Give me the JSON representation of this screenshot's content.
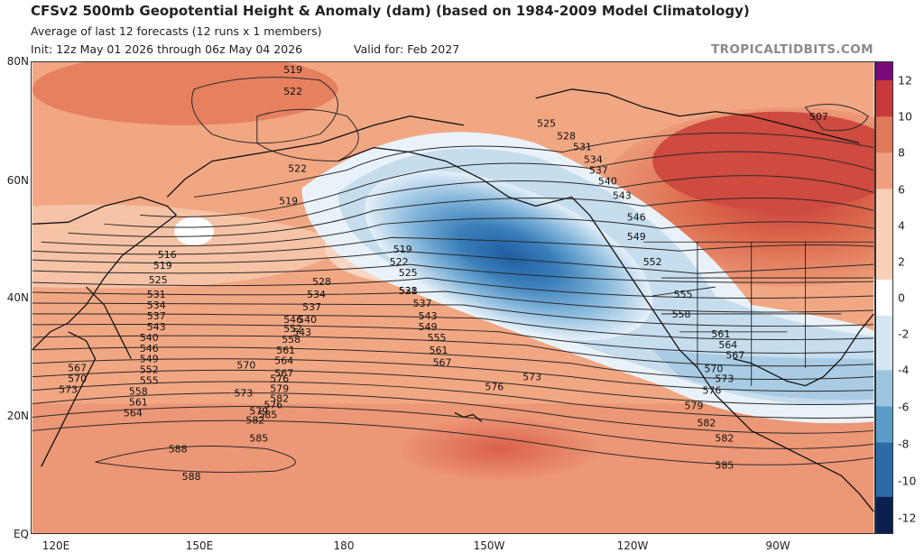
{
  "header": {
    "title": "CFSv2 500mb Geopotential Height & Anomaly (dam) (based on 1984-2009 Model Climatology)",
    "subtitle": "Average of last 12 forecasts (12 runs x 1 members)",
    "init": "Init: 12z May 01 2026 through 06z May 04 2026",
    "valid": "Valid for: Feb 2027",
    "brand": "TROPICALTIDBITS.COM"
  },
  "axes": {
    "lat_labels": [
      "80N",
      "60N",
      "40N",
      "20N",
      "EQ"
    ],
    "lon_labels": [
      "120E",
      "150E",
      "180",
      "150W",
      "120W",
      "90W"
    ]
  },
  "colorbar": {
    "labels": [
      "12",
      "10",
      "8",
      "6",
      "4",
      "2",
      "0",
      "-2",
      "-4",
      "-6",
      "-8",
      "-10",
      "-12"
    ],
    "colors": {
      "pos_high": "#7a0a7a",
      "pos_strong": "#c8393b",
      "pos_mid": "#e07a5a",
      "pos_low": "#f0a080",
      "pos_weak": "#f8d0b8",
      "zero": "#ffffff",
      "neg_weak": "#d4e6f2",
      "neg_low": "#9cc6e0",
      "neg_mid": "#5a9bc8",
      "neg_strong": "#2c6aa8",
      "neg_high": "#0c2050"
    }
  },
  "contour_labels": [
    "519",
    "522",
    "522",
    "519",
    "516",
    "519",
    "525",
    "531",
    "534",
    "537",
    "543",
    "540",
    "546",
    "549",
    "552",
    "555",
    "558",
    "561",
    "564",
    "567",
    "570",
    "573",
    "576",
    "579",
    "582",
    "585",
    "588",
    "588",
    "528",
    "534",
    "537",
    "540",
    "543",
    "546",
    "552",
    "558",
    "561",
    "564",
    "567",
    "570",
    "573",
    "576",
    "579",
    "582",
    "585",
    "507",
    "519",
    "522",
    "525",
    "528",
    "531",
    "537",
    "543",
    "549",
    "555",
    "561",
    "567",
    "573",
    "576",
    "582",
    "585",
    "525",
    "528",
    "531",
    "534",
    "537",
    "540",
    "543",
    "546",
    "549",
    "552",
    "555",
    "558",
    "561",
    "564",
    "567",
    "570",
    "573",
    "576",
    "579",
    "582"
  ]
}
